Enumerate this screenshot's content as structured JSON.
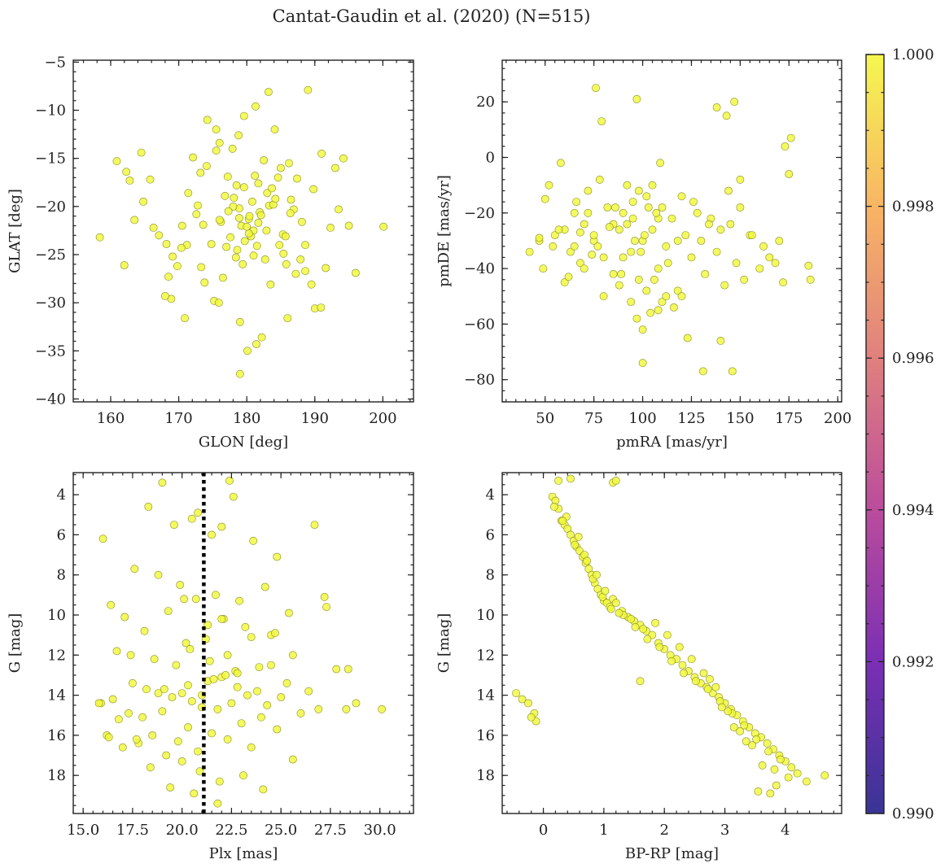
{
  "title": "Cantat-Gaudin et al. (2020) (N=515)",
  "point_color": "#f0f93a",
  "point_edge_color": "#8a8a20",
  "chart_data": [
    {
      "type": "scatter",
      "name": "glon-glat",
      "xlabel": "GLON [deg]",
      "ylabel": "GLAT [deg]",
      "xlim": [
        154.5,
        204.5
      ],
      "ylim": [
        -40.3,
        -4.8
      ],
      "y_inverted": false,
      "xticks": [
        160,
        170,
        180,
        190,
        200
      ],
      "xtick_labels": [
        "160",
        "170",
        "180",
        "190",
        "200"
      ],
      "yticks": [
        -40,
        -35,
        -30,
        -25,
        -20,
        -15,
        -10,
        -5
      ],
      "ytick_labels": [
        "−40",
        "−35",
        "−30",
        "−25",
        "−20",
        "−15",
        "−10",
        "−5"
      ],
      "x": [
        158.4,
        160.9,
        162.3,
        162.0,
        164.5,
        165.8,
        163.5,
        162.8,
        164.8,
        166.3,
        167.1,
        168.5,
        168.9,
        170.5,
        172.1,
        171.4,
        173.6,
        174.2,
        175.5,
        176.0,
        174.8,
        173.3,
        177.2,
        178.1,
        178.9,
        179.6,
        180.3,
        181.0,
        181.7,
        182.5,
        183.3,
        184.1,
        185.0,
        186.2,
        187.4,
        188.6,
        189.8,
        191.0,
        192.3,
        193.5,
        195.0,
        196.0,
        200.1,
        183.2,
        189.0,
        181.3,
        179.6,
        178.8,
        177.9,
        176.5,
        175.2,
        179.0,
        180.1,
        181.4,
        182.2,
        183.5,
        184.8,
        186.0,
        187.2,
        178.4,
        177.0,
        176.2,
        180.6,
        181.9,
        182.7,
        183.9,
        185.3,
        186.5,
        171.2,
        172.6,
        169.8,
        168.0,
        170.9,
        173.8,
        190.0,
        191.6,
        193.0,
        194.2,
        188.1,
        186.9,
        185.7,
        179.2,
        178.0,
        180.4,
        181.7,
        182.9,
        177.6,
        176.8,
        184.2,
        185.4,
        187.9,
        188.6,
        189.5,
        179.0,
        180.8,
        178.5,
        181.2,
        183.0,
        184.6,
        175.5,
        174.1,
        172.8,
        173.2,
        170.4,
        169.1,
        168.2,
        180.3,
        179.7,
        181.5,
        177.3,
        176.0,
        182.1,
        183.7,
        178.9,
        180.0,
        186.4,
        190.9,
        185.8,
        181.0,
        179.4,
        178.6,
        175.9
      ],
      "y": [
        -23.2,
        -15.3,
        -16.4,
        -26.1,
        -14.4,
        -17.2,
        -21.4,
        -17.3,
        -19.5,
        -22.2,
        -23.0,
        -27.3,
        -29.6,
        -22.0,
        -14.9,
        -18.6,
        -21.9,
        -11.0,
        -12.0,
        -13.4,
        -23.9,
        -26.3,
        -16.9,
        -19.1,
        -20.2,
        -18.0,
        -21.3,
        -22.5,
        -17.6,
        -15.2,
        -19.9,
        -12.0,
        -16.0,
        -15.5,
        -17.1,
        -24.0,
        -18.2,
        -14.5,
        -22.2,
        -20.3,
        -22.0,
        -26.9,
        -22.1,
        -8.1,
        -7.9,
        -9.6,
        -10.6,
        -12.6,
        -14.0,
        -27.4,
        -29.8,
        -32.0,
        -35.0,
        -34.3,
        -33.6,
        -28.1,
        -24.0,
        -31.6,
        -27.0,
        -25.3,
        -24.2,
        -21.6,
        -23.1,
        -20.6,
        -25.5,
        -19.8,
        -22.9,
        -19.3,
        -24.0,
        -20.8,
        -26.2,
        -29.3,
        -31.6,
        -27.9,
        -30.6,
        -26.4,
        -16.0,
        -15.0,
        -21.6,
        -20.3,
        -23.1,
        -22.0,
        -20.0,
        -21.0,
        -21.7,
        -22.5,
        -23.2,
        -18.9,
        -19.2,
        -24.9,
        -25.5,
        -26.7,
        -28.1,
        -37.4,
        -19.5,
        -17.8,
        -16.8,
        -18.6,
        -17.0,
        -14.2,
        -15.8,
        -19.9,
        -16.5,
        -24.3,
        -25.2,
        -23.9,
        -22.8,
        -23.6,
        -24.1,
        -20.5,
        -21.4,
        -20.9,
        -18.1,
        -21.2,
        -22.1,
        -20.7,
        -30.5,
        -26.0,
        -25.1,
        -26.0,
        -24.5,
        -30.0
      ]
    },
    {
      "type": "scatter",
      "name": "pmra-pmde",
      "xlabel": "pmRA [mas/yr]",
      "ylabel": "pmDE [mas/yr]",
      "xlim": [
        28,
        202
      ],
      "ylim": [
        -88,
        35
      ],
      "y_inverted": false,
      "xticks": [
        50,
        75,
        100,
        125,
        150,
        175,
        200
      ],
      "xtick_labels": [
        "50",
        "75",
        "100",
        "125",
        "150",
        "175",
        "200"
      ],
      "yticks": [
        -80,
        -60,
        -40,
        -20,
        0,
        20
      ],
      "ytick_labels": [
        "−80",
        "−60",
        "−40",
        "−20",
        "0",
        "20"
      ],
      "x": [
        42,
        47,
        50,
        52,
        55,
        58,
        60,
        63,
        65,
        68,
        70,
        72,
        75,
        78,
        80,
        82,
        85,
        88,
        90,
        92,
        95,
        98,
        100,
        102,
        105,
        108,
        110,
        112,
        115,
        118,
        120,
        122,
        125,
        128,
        130,
        132,
        135,
        138,
        140,
        142,
        145,
        148,
        150,
        152,
        155,
        160,
        165,
        170,
        172,
        175,
        185,
        186,
        76,
        79,
        97,
        138,
        143,
        147,
        173,
        176,
        100,
        108,
        110,
        123,
        131,
        140,
        146,
        97,
        100,
        112,
        88,
        94,
        102,
        104,
        106,
        116,
        120,
        85,
        90,
        95,
        98,
        103,
        108,
        60,
        65,
        70,
        75,
        80,
        86,
        92,
        96,
        99,
        101,
        107,
        113,
        118,
        126,
        134,
        144,
        150,
        156,
        162,
        168,
        105,
        109,
        94,
        89,
        83,
        77,
        72,
        66,
        57,
        54,
        49,
        47,
        62,
        68,
        74
      ],
      "y": [
        -34,
        -30,
        -15,
        -10,
        -28,
        -2,
        -45,
        -34,
        -20,
        -38,
        -24,
        -12,
        -30,
        -8,
        -50,
        -18,
        -42,
        -26,
        -36,
        -10,
        -22,
        -44,
        -30,
        -14,
        -26,
        -40,
        -18,
        -32,
        -22,
        -48,
        -14,
        -28,
        -36,
        -20,
        -30,
        -42,
        -22,
        -34,
        -26,
        -46,
        -24,
        -38,
        -18,
        -44,
        -28,
        -40,
        -36,
        -30,
        -45,
        -6,
        -39,
        -44,
        25,
        13,
        21,
        18,
        15,
        20,
        4,
        7,
        -62,
        -55,
        -52,
        -65,
        -77,
        -66,
        -77,
        -58,
        -74,
        -50,
        -46,
        -52,
        -48,
        -56,
        -44,
        -54,
        -50,
        -24,
        -20,
        -16,
        -12,
        -18,
        -22,
        -26,
        -32,
        -40,
        -28,
        -36,
        -18,
        -24,
        -30,
        -34,
        -28,
        -20,
        -38,
        -30,
        -16,
        -24,
        -12,
        -8,
        -28,
        -32,
        -38,
        -10,
        -2,
        -34,
        -42,
        -25,
        -32,
        -20,
        -16,
        -26,
        -32,
        -40,
        -29,
        -43,
        -27,
        -35
      ]
    },
    {
      "type": "scatter",
      "name": "plx-g",
      "xlabel": "Plx [mas]",
      "ylabel": "G [mag]",
      "xlim": [
        14.5,
        31.7
      ],
      "ylim": [
        19.9,
        2.9
      ],
      "y_inverted": true,
      "reference_line": {
        "x": 21.1,
        "style": "dotted",
        "color": "#000000"
      },
      "xticks": [
        15,
        17.5,
        20,
        22.5,
        25,
        27.5,
        30
      ],
      "xtick_labels": [
        "15.0",
        "17.5",
        "20.0",
        "22.5",
        "25.0",
        "27.5",
        "30.0"
      ],
      "yticks": [
        4,
        6,
        8,
        10,
        12,
        14,
        16,
        18
      ],
      "ytick_labels": [
        "4",
        "6",
        "8",
        "10",
        "12",
        "14",
        "16",
        "18"
      ],
      "x": [
        15.9,
        16.2,
        16.5,
        16.8,
        17.0,
        17.3,
        17.5,
        17.8,
        18.0,
        18.2,
        18.5,
        18.8,
        19.0,
        19.2,
        19.5,
        19.8,
        20.0,
        20.3,
        20.5,
        20.8,
        21.0,
        21.3,
        21.5,
        21.8,
        22.0,
        22.3,
        22.5,
        22.8,
        23.0,
        23.3,
        23.5,
        23.8,
        24.0,
        24.3,
        24.5,
        24.8,
        25.0,
        25.3,
        25.6,
        26.0,
        26.4,
        26.9,
        27.3,
        27.8,
        28.3,
        28.8,
        30.1,
        19.0,
        22.4,
        22.6,
        18.3,
        20.5,
        22.0,
        23.6,
        24.8,
        20.8,
        19.6,
        21.5,
        16.0,
        17.6,
        18.8,
        19.9,
        20.7,
        21.7,
        22.9,
        24.2,
        25.4,
        16.4,
        17.1,
        18.1,
        19.3,
        20.2,
        21.2,
        22.1,
        23.2,
        24.5,
        16.7,
        17.4,
        18.6,
        19.7,
        20.4,
        21.4,
        22.7,
        23.9,
        20.0,
        20.9,
        21.9,
        18.4,
        17.7,
        16.3,
        15.8,
        19.4,
        20.6,
        21.8,
        23.1,
        24.1,
        25.6,
        26.7,
        28.4,
        27.2,
        22.0,
        21.3,
        20.1,
        22.3,
        23.5,
        24.7,
        22.8,
        21.6,
        20.3,
        19.1,
        21.0,
        22.2
      ],
      "y": [
        14.4,
        16.0,
        14.2,
        15.2,
        16.6,
        14.9,
        13.4,
        16.4,
        15.1,
        13.7,
        16.0,
        13.9,
        14.8,
        17.0,
        14.1,
        16.3,
        13.9,
        15.6,
        14.3,
        16.8,
        14.6,
        13.3,
        15.9,
        14.7,
        13.1,
        16.2,
        14.4,
        13.6,
        15.4,
        14.0,
        16.6,
        13.8,
        15.1,
        14.5,
        12.5,
        15.7,
        14.1,
        13.4,
        12.0,
        14.9,
        13.8,
        14.7,
        9.6,
        12.7,
        14.7,
        14.4,
        14.7,
        3.4,
        3.3,
        4.1,
        4.6,
        5.2,
        5.6,
        6.3,
        7.1,
        4.9,
        5.5,
        6.0,
        6.2,
        7.7,
        8.0,
        8.5,
        9.2,
        9.0,
        9.3,
        8.6,
        9.9,
        9.5,
        10.1,
        10.8,
        9.8,
        11.4,
        11.2,
        10.2,
        10.6,
        11.0,
        11.8,
        12.0,
        12.2,
        12.5,
        11.7,
        12.3,
        12.8,
        12.6,
        17.3,
        17.8,
        18.3,
        17.6,
        16.2,
        16.1,
        14.4,
        18.6,
        18.9,
        19.4,
        18.0,
        18.7,
        17.2,
        5.5,
        12.7,
        9.1,
        10.2,
        10.5,
        9.2,
        12.0,
        11.1,
        10.9,
        12.9,
        13.2,
        13.5,
        13.7,
        14.0,
        13.0
      ]
    },
    {
      "type": "scatter",
      "name": "bprp-g",
      "xlabel": "BP-RP [mag]",
      "ylabel": "G [mag]",
      "xlim": [
        -0.68,
        4.93
      ],
      "ylim": [
        19.9,
        2.9
      ],
      "y_inverted": true,
      "xticks": [
        0,
        1,
        2,
        3,
        4
      ],
      "xtick_labels": [
        "0",
        "1",
        "2",
        "3",
        "4"
      ],
      "yticks": [
        4,
        6,
        8,
        10,
        12,
        14,
        16,
        18
      ],
      "ytick_labels": [
        "4",
        "6",
        "8",
        "10",
        "12",
        "14",
        "16",
        "18"
      ],
      "x": [
        0.15,
        0.2,
        0.25,
        0.3,
        0.35,
        0.4,
        0.45,
        0.5,
        0.55,
        0.6,
        0.65,
        0.7,
        0.75,
        0.8,
        0.85,
        0.9,
        0.95,
        1.0,
        1.05,
        1.1,
        1.15,
        1.2,
        1.3,
        1.4,
        1.5,
        1.6,
        1.7,
        1.8,
        1.9,
        2.0,
        2.1,
        2.2,
        2.3,
        2.4,
        2.5,
        2.6,
        2.7,
        2.8,
        2.9,
        3.0,
        3.1,
        3.2,
        3.3,
        3.4,
        3.5,
        3.6,
        3.7,
        3.8,
        3.9,
        4.0,
        4.1,
        4.2,
        4.35,
        4.65,
        1.15,
        1.2,
        0.25,
        0.45,
        1.6,
        3.55,
        3.75,
        3.85,
        -0.45,
        -0.35,
        -0.25,
        -0.15,
        -0.12,
        -0.2,
        0.38,
        0.52,
        0.68,
        0.82,
        0.98,
        1.12,
        1.32,
        1.52,
        1.72,
        1.92,
        2.12,
        2.32,
        2.52,
        2.72,
        2.92,
        3.12,
        3.32,
        3.52,
        3.72,
        3.92,
        2.65,
        2.85,
        3.05,
        3.25,
        3.45,
        2.45,
        2.25,
        2.05,
        1.85,
        1.65,
        1.45,
        1.25,
        3.15,
        3.35,
        2.95,
        2.75,
        3.62,
        3.82,
        4.05,
        0.58,
        0.72,
        0.88,
        1.02,
        0.32,
        0.18
      ],
      "y": [
        4.1,
        4.3,
        4.7,
        5.3,
        5.5,
        5.7,
        6.0,
        6.3,
        6.6,
        6.8,
        7.1,
        7.4,
        7.7,
        8.0,
        8.4,
        8.7,
        9.0,
        9.3,
        9.4,
        9.6,
        9.2,
        9.4,
        9.8,
        10.1,
        10.3,
        10.5,
        10.8,
        11.0,
        11.4,
        11.7,
        12.0,
        12.2,
        12.5,
        12.8,
        13.1,
        13.4,
        13.6,
        13.9,
        14.1,
        14.4,
        14.7,
        15.0,
        15.3,
        15.6,
        15.9,
        16.1,
        16.4,
        16.7,
        17.0,
        17.3,
        17.6,
        17.9,
        18.3,
        18.0,
        3.4,
        3.3,
        3.3,
        3.2,
        13.3,
        18.8,
        18.9,
        18.5,
        13.9,
        14.2,
        14.4,
        14.9,
        15.3,
        15.1,
        5.1,
        6.5,
        7.0,
        8.2,
        9.1,
        9.7,
        10.0,
        10.6,
        11.2,
        11.6,
        12.3,
        12.9,
        13.3,
        13.7,
        14.3,
        14.9,
        15.5,
        16.2,
        16.8,
        17.2,
        12.9,
        13.6,
        14.8,
        15.8,
        16.5,
        12.2,
        11.6,
        11.0,
        10.4,
        10.7,
        10.2,
        9.9,
        15.6,
        16.3,
        14.6,
        13.2,
        17.5,
        17.7,
        18.1,
        6.1,
        7.3,
        8.0,
        8.8,
        5.3,
        4.6
      ]
    }
  ],
  "colorbar": {
    "colormap": "plasma",
    "range": [
      0.99,
      1.0
    ],
    "ticks": [
      0.99,
      0.992,
      0.994,
      0.996,
      0.998,
      1.0
    ],
    "tick_labels": [
      "0.990",
      "0.992",
      "0.994",
      "0.996",
      "0.998",
      "1.000"
    ]
  }
}
